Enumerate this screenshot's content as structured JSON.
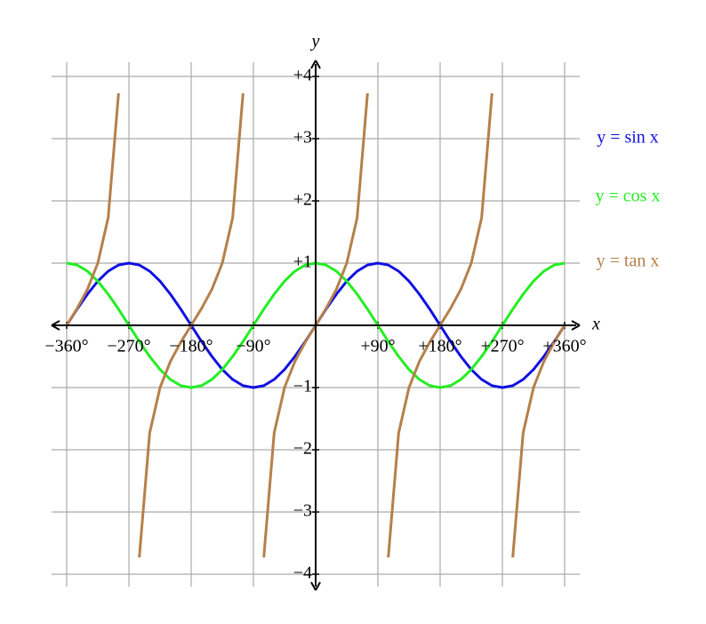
{
  "chart_data": {
    "type": "line",
    "x_label": "x",
    "y_label": "y",
    "x": [
      -360,
      -345,
      -330,
      -315,
      -300,
      -285,
      -270,
      -255,
      -240,
      -225,
      -210,
      -195,
      -180,
      -165,
      -150,
      -135,
      -120,
      -105,
      -90,
      -75,
      -60,
      -45,
      -30,
      -15,
      0,
      15,
      30,
      45,
      60,
      75,
      90,
      105,
      120,
      135,
      150,
      165,
      180,
      195,
      210,
      225,
      240,
      255,
      270,
      285,
      300,
      315,
      330,
      345,
      360
    ],
    "series": [
      {
        "name": "y = sin x",
        "color": "#1010e0",
        "values": [
          0,
          0.26,
          0.5,
          0.71,
          0.87,
          0.97,
          1,
          0.97,
          0.87,
          0.71,
          0.5,
          0.26,
          0,
          -0.26,
          -0.5,
          -0.71,
          -0.87,
          -0.97,
          -1,
          -0.97,
          -0.87,
          -0.71,
          -0.5,
          -0.26,
          0,
          0.26,
          0.5,
          0.71,
          0.87,
          0.97,
          1,
          0.97,
          0.87,
          0.71,
          0.5,
          0.26,
          0,
          -0.26,
          -0.5,
          -0.71,
          -0.87,
          -0.97,
          -1,
          -0.97,
          -0.87,
          -0.71,
          -0.5,
          -0.26,
          0
        ]
      },
      {
        "name": "y = cos x",
        "color": "#22ee22",
        "values": [
          1,
          0.97,
          0.87,
          0.71,
          0.5,
          0.26,
          0,
          -0.26,
          -0.5,
          -0.71,
          -0.87,
          -0.97,
          -1,
          -0.97,
          -0.87,
          -0.71,
          -0.5,
          -0.26,
          0,
          0.26,
          0.5,
          0.71,
          0.87,
          0.97,
          1,
          0.97,
          0.87,
          0.71,
          0.5,
          0.26,
          0,
          -0.26,
          -0.5,
          -0.71,
          -0.87,
          -0.97,
          -1,
          -0.97,
          -0.87,
          -0.71,
          -0.5,
          -0.26,
          0,
          0.26,
          0.5,
          0.71,
          0.87,
          0.97,
          1
        ]
      },
      {
        "name": "y = tan x",
        "color": "#b5804a",
        "values": [
          0,
          0.27,
          0.58,
          1,
          1.73,
          3.73,
          null,
          -3.73,
          -1.73,
          -1,
          -0.58,
          -0.27,
          0,
          0.27,
          0.58,
          1,
          1.73,
          3.73,
          null,
          -3.73,
          -1.73,
          -1,
          -0.58,
          -0.27,
          0,
          0.27,
          0.58,
          1,
          1.73,
          3.73,
          null,
          -3.73,
          -1.73,
          -1,
          -0.58,
          -0.27,
          0,
          0.27,
          0.58,
          1,
          1.73,
          3.73,
          null,
          -3.73,
          -1.73,
          -1,
          -0.58,
          -0.27,
          0
        ]
      }
    ],
    "xlim": [
      -360,
      360
    ],
    "ylim": [
      -4,
      4
    ],
    "xticks": [
      {
        "value": -360,
        "label": "−360°"
      },
      {
        "value": -270,
        "label": "−270°"
      },
      {
        "value": -180,
        "label": "−180°"
      },
      {
        "value": -90,
        "label": "−90°"
      },
      {
        "value": 90,
        "label": "+90°"
      },
      {
        "value": 180,
        "label": "+180°"
      },
      {
        "value": 270,
        "label": "+270°"
      },
      {
        "value": 360,
        "label": "+360°"
      }
    ],
    "yticks": [
      {
        "value": -4,
        "label": "−4"
      },
      {
        "value": -3,
        "label": "−3"
      },
      {
        "value": -2,
        "label": "−2"
      },
      {
        "value": -1,
        "label": "−1"
      },
      {
        "value": 1,
        "label": "+1"
      },
      {
        "value": 2,
        "label": "+2"
      },
      {
        "value": 3,
        "label": "+3"
      },
      {
        "value": 4,
        "label": "+4"
      }
    ],
    "grid": true
  }
}
